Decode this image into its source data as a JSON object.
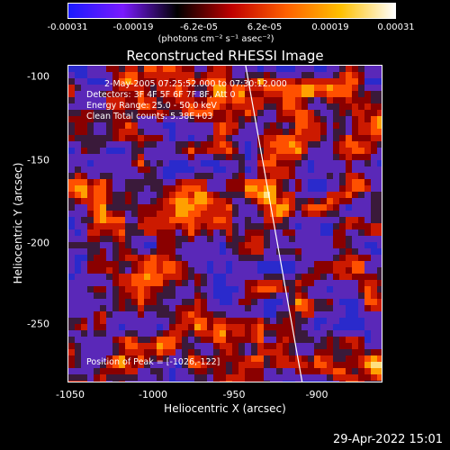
{
  "colorbar": {
    "ticks": [
      "-0.00031",
      "-0.00019",
      "-6.2e-05",
      "6.2e-05",
      "0.00019",
      "0.00031"
    ],
    "units": "(photons cm⁻² s⁻¹ asec⁻²)",
    "colors": [
      "#1a1aff",
      "#7a1aff",
      "#000000",
      "#c00000",
      "#ff6000",
      "#ffc000",
      "#ffffff"
    ]
  },
  "plot": {
    "title": "Reconstructed RHESSI Image",
    "xlabel": "Heliocentric X (arcsec)",
    "ylabel": "Heliocentric Y (arcsec)",
    "xticks": [
      "-1050",
      "-1000",
      "-950",
      "-900"
    ],
    "yticks": [
      "-100",
      "-150",
      "-200",
      "-250"
    ],
    "info": [
      "2-May-2005 07:25:52.000 to 07:30:12.000",
      "Detectors: 3F 4F 5F 6F 7F 8F, Att 0",
      "Energy Range: 25.0 - 50.0 keV",
      "Clean    Total counts: 5.38E+03"
    ],
    "peak": "Position of Peak = [-1026,-122]"
  },
  "footer": {
    "timestamp": "29-Apr-2022 15:01"
  }
}
